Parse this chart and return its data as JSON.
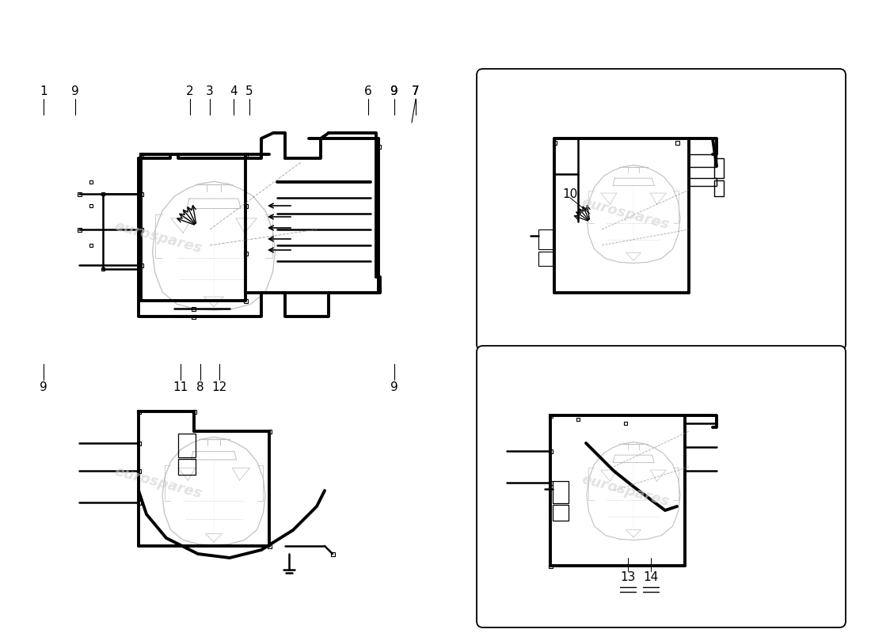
{
  "bg": "#ffffff",
  "lc": "#000000",
  "llc": "#c0c0c0",
  "wm": "#d0d0d0",
  "lw_thick": 2.8,
  "lw_med": 1.8,
  "lw_thin": 0.9,
  "lw_xtra": 0.6,
  "fs_label": 11,
  "fs_wm": 13,
  "top_labels": [
    [
      "1",
      55,
      115
    ],
    [
      "9",
      95,
      115
    ],
    [
      "2",
      240,
      115
    ],
    [
      "3",
      265,
      115
    ],
    [
      "4",
      295,
      115
    ],
    [
      "5",
      315,
      115
    ],
    [
      "6",
      465,
      115
    ],
    [
      "9",
      498,
      115
    ],
    [
      "7",
      525,
      115
    ]
  ],
  "bot_labels_tl": [
    [
      "9",
      55,
      490
    ],
    [
      "11",
      228,
      490
    ],
    [
      "8",
      253,
      490
    ],
    [
      "12",
      277,
      490
    ],
    [
      "9",
      498,
      490
    ]
  ],
  "label_10": [
    720,
    245
  ],
  "label_13": [
    793,
    730
  ],
  "label_14": [
    822,
    730
  ]
}
